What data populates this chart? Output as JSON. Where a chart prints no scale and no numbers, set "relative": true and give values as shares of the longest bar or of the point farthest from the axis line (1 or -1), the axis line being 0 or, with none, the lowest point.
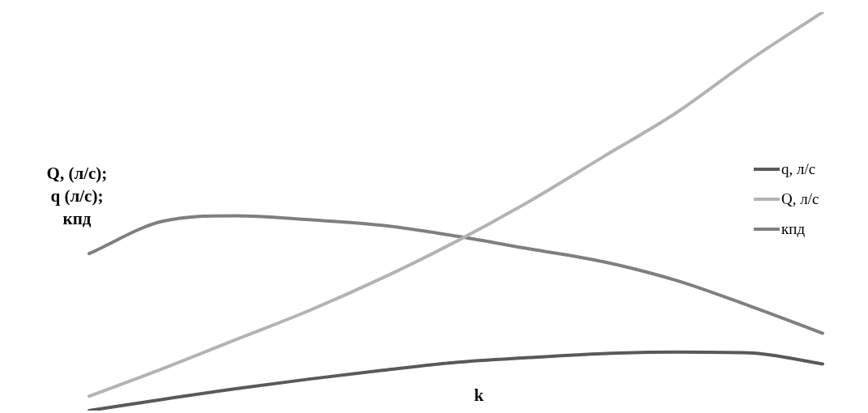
{
  "chart_data": {
    "type": "line",
    "relative": true,
    "xlabel": "k",
    "ylabel": "Q, (л/с);\nq (л/с);\nкпд",
    "legend": "right",
    "marker": "none",
    "categories": [
      null,
      null,
      null,
      null,
      null,
      null,
      null,
      null,
      null,
      null,
      null
    ],
    "series": [
      {
        "name": "q, л/с",
        "color": "#595959",
        "values": [
          0,
          0.028,
          0.055,
          0.079,
          0.101,
          0.121,
          0.133,
          0.143,
          0.147,
          0.145,
          0.117
        ]
      },
      {
        "name": "Q, л/с",
        "color": "#b3b3b3",
        "values": [
          0.036,
          0.105,
          0.178,
          0.251,
          0.333,
          0.424,
          0.525,
          0.636,
          0.747,
          0.879,
          1
        ]
      },
      {
        "name": "кпд",
        "color": "#7f7f7f",
        "values": [
          0.394,
          0.475,
          0.489,
          0.479,
          0.465,
          0.438,
          0.406,
          0.374,
          0.327,
          0.263,
          0.194
        ]
      }
    ]
  }
}
